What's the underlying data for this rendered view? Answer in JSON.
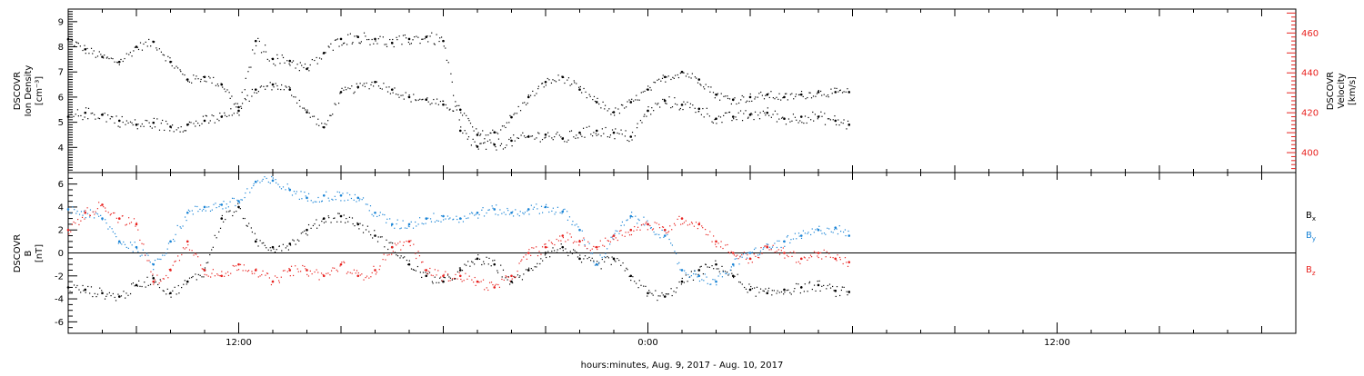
{
  "chart_data": [
    {
      "type": "scatter",
      "title": "",
      "xlabel": "",
      "x_range_hours": [
        -17,
        19
      ],
      "ylabel_left": [
        "DSCOVR",
        "Ion Density",
        "[cm⁻³]"
      ],
      "ylabel_right": [
        "DSCOVR",
        "Velocity",
        "[km/s]"
      ],
      "ylim_left": [
        3.0,
        9.5
      ],
      "ylim_right": [
        390,
        472
      ],
      "yticks_left": [
        4,
        5,
        6,
        7,
        8,
        9
      ],
      "yticks_right": [
        400,
        420,
        440,
        460
      ],
      "grid": false,
      "colors": {
        "density": "#000000",
        "velocity": "#e8221f"
      },
      "series": [
        {
          "axis": "left",
          "x": [
            -17.0,
            -16.5,
            -16.0,
            -15.5,
            -15.0,
            -14.5,
            -14.0,
            -13.5,
            -13.0,
            -12.5,
            -12.0,
            -11.5,
            -11.0,
            -10.5,
            -10.0,
            -9.5,
            -9.0,
            -8.5,
            -8.0,
            -7.5,
            -7.0,
            -6.5,
            -6.0,
            -5.5,
            -5.0,
            -4.5,
            -4.0,
            -3.5,
            -3.0,
            -2.5,
            -2.0,
            -1.5,
            -1.0,
            -0.5,
            0.0,
            0.5,
            1.0,
            1.5,
            2.0,
            2.5,
            3.0,
            3.5,
            4.0,
            4.5,
            5.0,
            5.5,
            5.9
          ],
          "values": [
            8.3,
            7.9,
            7.6,
            7.4,
            8.0,
            8.2,
            7.4,
            6.7,
            6.8,
            6.5,
            5.6,
            6.3,
            6.5,
            6.3,
            5.4,
            4.8,
            6.2,
            6.4,
            6.6,
            6.3,
            6.0,
            5.9,
            5.7,
            5.5,
            4.5,
            4.6,
            5.2,
            6.0,
            6.6,
            6.8,
            6.3,
            5.8,
            5.4,
            5.8,
            6.3,
            6.8,
            7.0,
            6.7,
            6.1,
            5.9,
            6.0,
            6.1,
            6.0,
            6.1,
            6.2,
            6.2,
            6.2
          ]
        },
        {
          "axis": "right",
          "x": [
            -17.0,
            -16.5,
            -16.0,
            -15.5,
            -15.0,
            -14.5,
            -14.0,
            -13.5,
            -13.0,
            -12.5,
            -12.0,
            -11.5,
            -11.0,
            -10.5,
            -10.0,
            -9.5,
            -9.0,
            -8.5,
            -8.0,
            -7.5,
            -7.0,
            -6.5,
            -6.0,
            -5.5,
            -5.0,
            -4.5,
            -4.0,
            -3.5,
            -3.0,
            -2.5,
            -2.0,
            -1.5,
            -1.0,
            -0.5,
            0.0,
            0.5,
            1.0,
            1.5,
            2.0,
            2.5,
            3.0,
            3.5,
            4.0,
            4.5,
            5.0,
            5.5,
            5.9
          ],
          "values": [
            418,
            420,
            419,
            416,
            414,
            415,
            413,
            414,
            416,
            418,
            421,
            456,
            447,
            446,
            442,
            450,
            457,
            458,
            457,
            455,
            457,
            458,
            456,
            411,
            403,
            404,
            406,
            408,
            409,
            407,
            410,
            411,
            410,
            408,
            421,
            426,
            424,
            422,
            417,
            418,
            419,
            420,
            417,
            418,
            418,
            416,
            414
          ]
        }
      ]
    },
    {
      "type": "scatter",
      "title": "",
      "xlabel": "hours:minutes, Aug.  9, 2017 - Aug. 10, 2017",
      "x_range_hours": [
        -17,
        19
      ],
      "xtick_labels": [
        {
          "hour": -12,
          "label": "12:00"
        },
        {
          "hour": 0,
          "label": "0:00"
        },
        {
          "hour": 12,
          "label": "12:00"
        }
      ],
      "ylabel_left": [
        "DSCOVR",
        "B",
        "[nT]"
      ],
      "ylim": [
        -7,
        7
      ],
      "yticks": [
        -6,
        -4,
        -2,
        0,
        2,
        4,
        6
      ],
      "zero_line": true,
      "grid": false,
      "legend_placement": "right",
      "series": [
        {
          "name": "Bx",
          "label_main": "B",
          "label_sub": "x",
          "color": "#000000",
          "x": [
            -17.0,
            -16.5,
            -16.0,
            -15.5,
            -15.0,
            -14.5,
            -14.0,
            -13.5,
            -13.0,
            -12.5,
            -12.0,
            -11.5,
            -11.0,
            -10.5,
            -10.0,
            -9.5,
            -9.0,
            -8.5,
            -8.0,
            -7.5,
            -7.0,
            -6.5,
            -6.0,
            -5.5,
            -5.0,
            -4.5,
            -4.0,
            -3.5,
            -3.0,
            -2.5,
            -2.0,
            -1.5,
            -1.0,
            -0.5,
            0.0,
            0.5,
            1.0,
            1.5,
            2.0,
            2.5,
            3.0,
            3.5,
            4.0,
            4.5,
            5.0,
            5.5,
            5.9
          ],
          "values": [
            -3.0,
            -3.2,
            -3.5,
            -3.8,
            -2.8,
            -2.2,
            -3.5,
            -2.5,
            -1.5,
            3.0,
            4.0,
            1.0,
            0.5,
            0.8,
            2.0,
            3.0,
            3.2,
            2.5,
            1.5,
            0.5,
            -1.0,
            -2.0,
            -2.5,
            -1.5,
            -0.5,
            -1.0,
            -2.5,
            -1.5,
            0.0,
            0.5,
            -0.5,
            -1.0,
            -0.5,
            -2.0,
            -3.5,
            -3.8,
            -2.5,
            -1.5,
            -1.0,
            -2.0,
            -3.2,
            -3.5,
            -3.2,
            -3.0,
            -2.8,
            -3.3,
            -3.4
          ]
        },
        {
          "name": "By",
          "label_main": "B",
          "label_sub": "y",
          "color": "#1a84d6",
          "x": [
            -17.0,
            -16.5,
            -16.0,
            -15.5,
            -15.0,
            -14.5,
            -14.0,
            -13.5,
            -13.0,
            -12.5,
            -12.0,
            -11.5,
            -11.0,
            -10.5,
            -10.0,
            -9.5,
            -9.0,
            -8.5,
            -8.0,
            -7.5,
            -7.0,
            -6.5,
            -6.0,
            -5.5,
            -5.0,
            -4.5,
            -4.0,
            -3.5,
            -3.0,
            -2.5,
            -2.0,
            -1.5,
            -1.0,
            -0.5,
            0.0,
            0.5,
            1.0,
            1.5,
            2.0,
            2.5,
            3.0,
            3.5,
            4.0,
            4.5,
            5.0,
            5.5,
            5.9
          ],
          "values": [
            3.8,
            3.5,
            3.0,
            1.0,
            0.5,
            -1.0,
            1.0,
            3.5,
            4.0,
            4.2,
            4.5,
            6.2,
            6.3,
            5.5,
            4.8,
            5.0,
            5.0,
            4.8,
            3.5,
            2.5,
            2.5,
            3.0,
            3.2,
            3.0,
            3.5,
            3.8,
            3.5,
            3.8,
            4.0,
            3.6,
            2.0,
            -1.0,
            1.5,
            3.2,
            2.5,
            1.5,
            -1.5,
            -2.0,
            -2.5,
            -1.0,
            0.0,
            0.5,
            1.0,
            1.5,
            2.0,
            2.2,
            1.5
          ]
        },
        {
          "name": "Bz",
          "label_main": "B",
          "label_sub": "z",
          "color": "#e8221f",
          "x": [
            -17.0,
            -16.5,
            -16.0,
            -15.5,
            -15.0,
            -14.5,
            -14.0,
            -13.5,
            -13.0,
            -12.5,
            -12.0,
            -11.5,
            -11.0,
            -10.5,
            -10.0,
            -9.5,
            -9.0,
            -8.5,
            -8.0,
            -7.5,
            -7.0,
            -6.5,
            -6.0,
            -5.5,
            -5.0,
            -4.5,
            -4.0,
            -3.5,
            -3.0,
            -2.5,
            -2.0,
            -1.5,
            -1.0,
            -0.5,
            0.0,
            0.5,
            1.0,
            1.5,
            2.0,
            2.5,
            3.0,
            3.5,
            4.0,
            4.5,
            5.0,
            5.5,
            5.9
          ],
          "values": [
            2.0,
            3.5,
            4.2,
            3.0,
            2.5,
            -2.5,
            -1.5,
            1.0,
            -1.5,
            -2.0,
            -1.0,
            -1.5,
            -2.5,
            -1.5,
            -1.5,
            -2.0,
            -1.0,
            -2.0,
            -1.5,
            0.5,
            1.0,
            -1.5,
            -2.0,
            -2.0,
            -2.5,
            -3.0,
            -2.0,
            0.0,
            0.5,
            1.5,
            1.0,
            0.5,
            1.5,
            2.0,
            2.5,
            2.0,
            3.0,
            2.5,
            1.0,
            0.0,
            -0.5,
            0.5,
            0.0,
            -0.5,
            0.0,
            -0.5,
            -0.8
          ]
        }
      ]
    }
  ]
}
